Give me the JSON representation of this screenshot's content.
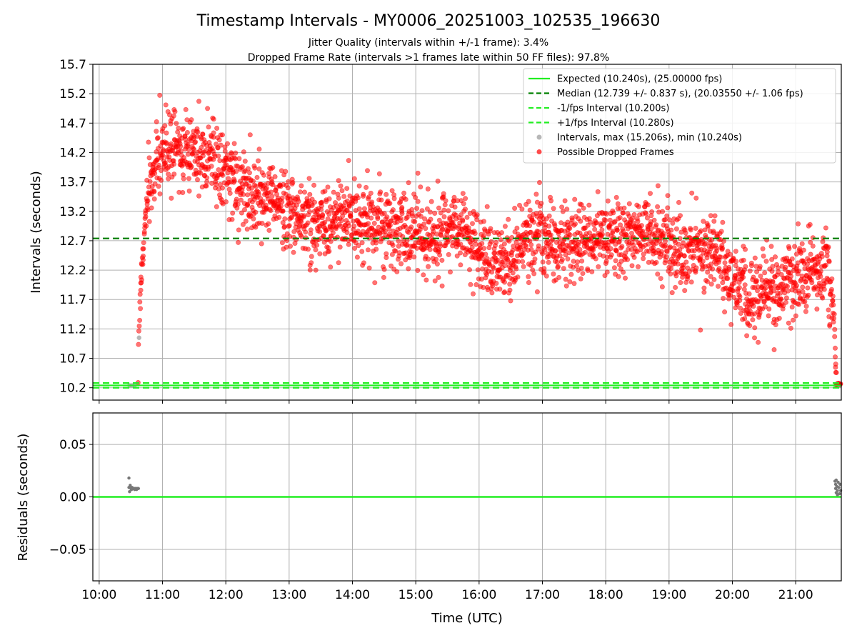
{
  "title": "Timestamp Intervals - MY0006_20251003_102535_196630",
  "subtitle1": "Jitter Quality (intervals within +/-1 frame): 3.4%",
  "subtitle2": "Dropped Frame Rate (intervals >1 frames late within 50 FF files): 97.8%",
  "chart_data": [
    {
      "type": "scatter",
      "ylabel": "Intervals (seconds)",
      "ylim": [
        9.99,
        15.7
      ],
      "yticks": [
        "10.2",
        "10.7",
        "11.2",
        "11.7",
        "12.2",
        "12.7",
        "13.2",
        "13.7",
        "14.2",
        "14.7",
        "15.2",
        "15.7"
      ],
      "grid": true,
      "legend_position": "top-right",
      "legend": [
        {
          "label": "Expected (10.240s), (25.00000 fps)",
          "style": "solid",
          "color": "#22ee22"
        },
        {
          "label": "Median (12.739 +/- 0.837 s), (20.03550 +/- 1.06 fps)",
          "style": "dashed",
          "color": "#008000"
        },
        {
          "label": "-1/fps Interval (10.200s)",
          "style": "dashed",
          "color": "#22ee22"
        },
        {
          "label": "+1/fps Interval (10.280s)",
          "style": "dashed",
          "color": "#22ee22"
        },
        {
          "label": "Intervals, max (15.206s), min (10.240s)",
          "style": "marker",
          "color": "#999999"
        },
        {
          "label": "Possible Dropped Frames",
          "style": "marker",
          "color": "#ff0000"
        }
      ],
      "lines": {
        "expected": 10.24,
        "median": 12.739,
        "minus_1fps": 10.2,
        "plus_1fps": 10.28
      },
      "trend_points": [
        [
          10.62,
          11.0
        ],
        [
          10.66,
          12.0
        ],
        [
          10.72,
          13.0
        ],
        [
          10.8,
          13.6
        ],
        [
          10.9,
          14.0
        ],
        [
          11.0,
          14.2
        ],
        [
          11.25,
          14.3
        ],
        [
          11.5,
          14.25
        ],
        [
          11.75,
          14.15
        ],
        [
          12.0,
          13.9
        ],
        [
          12.25,
          13.6
        ],
        [
          12.5,
          13.4
        ],
        [
          12.75,
          13.45
        ],
        [
          13.0,
          13.2
        ],
        [
          13.25,
          13.0
        ],
        [
          13.5,
          12.95
        ],
        [
          13.75,
          13.1
        ],
        [
          14.0,
          13.0
        ],
        [
          14.25,
          13.05
        ],
        [
          14.5,
          12.85
        ],
        [
          14.75,
          12.9
        ],
        [
          15.0,
          12.75
        ],
        [
          15.25,
          12.75
        ],
        [
          15.5,
          12.85
        ],
        [
          15.75,
          12.9
        ],
        [
          16.0,
          12.55
        ],
        [
          16.25,
          12.3
        ],
        [
          16.5,
          12.45
        ],
        [
          16.75,
          12.7
        ],
        [
          17.0,
          12.8
        ],
        [
          17.25,
          12.7
        ],
        [
          17.5,
          12.65
        ],
        [
          17.75,
          12.75
        ],
        [
          18.0,
          12.8
        ],
        [
          18.25,
          12.65
        ],
        [
          18.5,
          12.85
        ],
        [
          18.75,
          12.8
        ],
        [
          19.0,
          12.6
        ],
        [
          19.25,
          12.55
        ],
        [
          19.5,
          12.6
        ],
        [
          19.75,
          12.55
        ],
        [
          19.9,
          12.1
        ],
        [
          20.1,
          11.9
        ],
        [
          20.4,
          11.85
        ],
        [
          20.7,
          11.95
        ],
        [
          21.0,
          12.0
        ],
        [
          21.3,
          12.15
        ],
        [
          21.5,
          12.2
        ],
        [
          21.6,
          11.5
        ],
        [
          21.62,
          10.9
        ],
        [
          21.64,
          10.3
        ]
      ],
      "trend_spread": 0.32,
      "trend_point_count": 2700,
      "gray_points": [
        [
          10.48,
          10.24
        ],
        [
          10.52,
          10.24
        ],
        [
          10.56,
          10.24
        ],
        [
          10.63,
          11.05
        ],
        [
          21.63,
          10.24
        ],
        [
          21.66,
          10.24
        ],
        [
          21.7,
          10.24
        ]
      ]
    },
    {
      "type": "scatter",
      "xlabel": "Time (UTC)",
      "ylabel": "Residuals (seconds)",
      "xlim": [
        9.9,
        21.72
      ],
      "ylim": [
        -0.08,
        0.08
      ],
      "xticks": [
        "10:00",
        "11:00",
        "12:00",
        "13:00",
        "14:00",
        "15:00",
        "16:00",
        "17:00",
        "18:00",
        "19:00",
        "20:00",
        "21:00"
      ],
      "yticks": [
        "−0.05",
        "0.00",
        "0.05"
      ],
      "grid": true,
      "zero_line_color": "#22ee22",
      "residual_points": [
        [
          10.47,
          0.018
        ],
        [
          10.47,
          0.009
        ],
        [
          10.48,
          0.005
        ],
        [
          10.49,
          0.011
        ],
        [
          10.5,
          0.008
        ],
        [
          10.51,
          0.007
        ],
        [
          10.52,
          0.009
        ],
        [
          10.53,
          0.008
        ],
        [
          10.54,
          0.008
        ],
        [
          10.55,
          0.008
        ],
        [
          10.56,
          0.007
        ],
        [
          10.57,
          0.008
        ],
        [
          10.58,
          0.008
        ],
        [
          10.59,
          0.007
        ],
        [
          10.6,
          0.008
        ],
        [
          10.61,
          0.008
        ],
        [
          10.62,
          0.008
        ],
        [
          21.62,
          0.015
        ],
        [
          21.63,
          0.012
        ],
        [
          21.63,
          0.008
        ],
        [
          21.64,
          0.004
        ],
        [
          21.64,
          0.016
        ],
        [
          21.65,
          0.01
        ],
        [
          21.66,
          0.006
        ],
        [
          21.66,
          0.002
        ],
        [
          21.67,
          0.014
        ],
        [
          21.68,
          0.009
        ],
        [
          21.69,
          0.003
        ],
        [
          21.7,
          0.012
        ],
        [
          21.71,
          0.006
        ]
      ]
    }
  ]
}
